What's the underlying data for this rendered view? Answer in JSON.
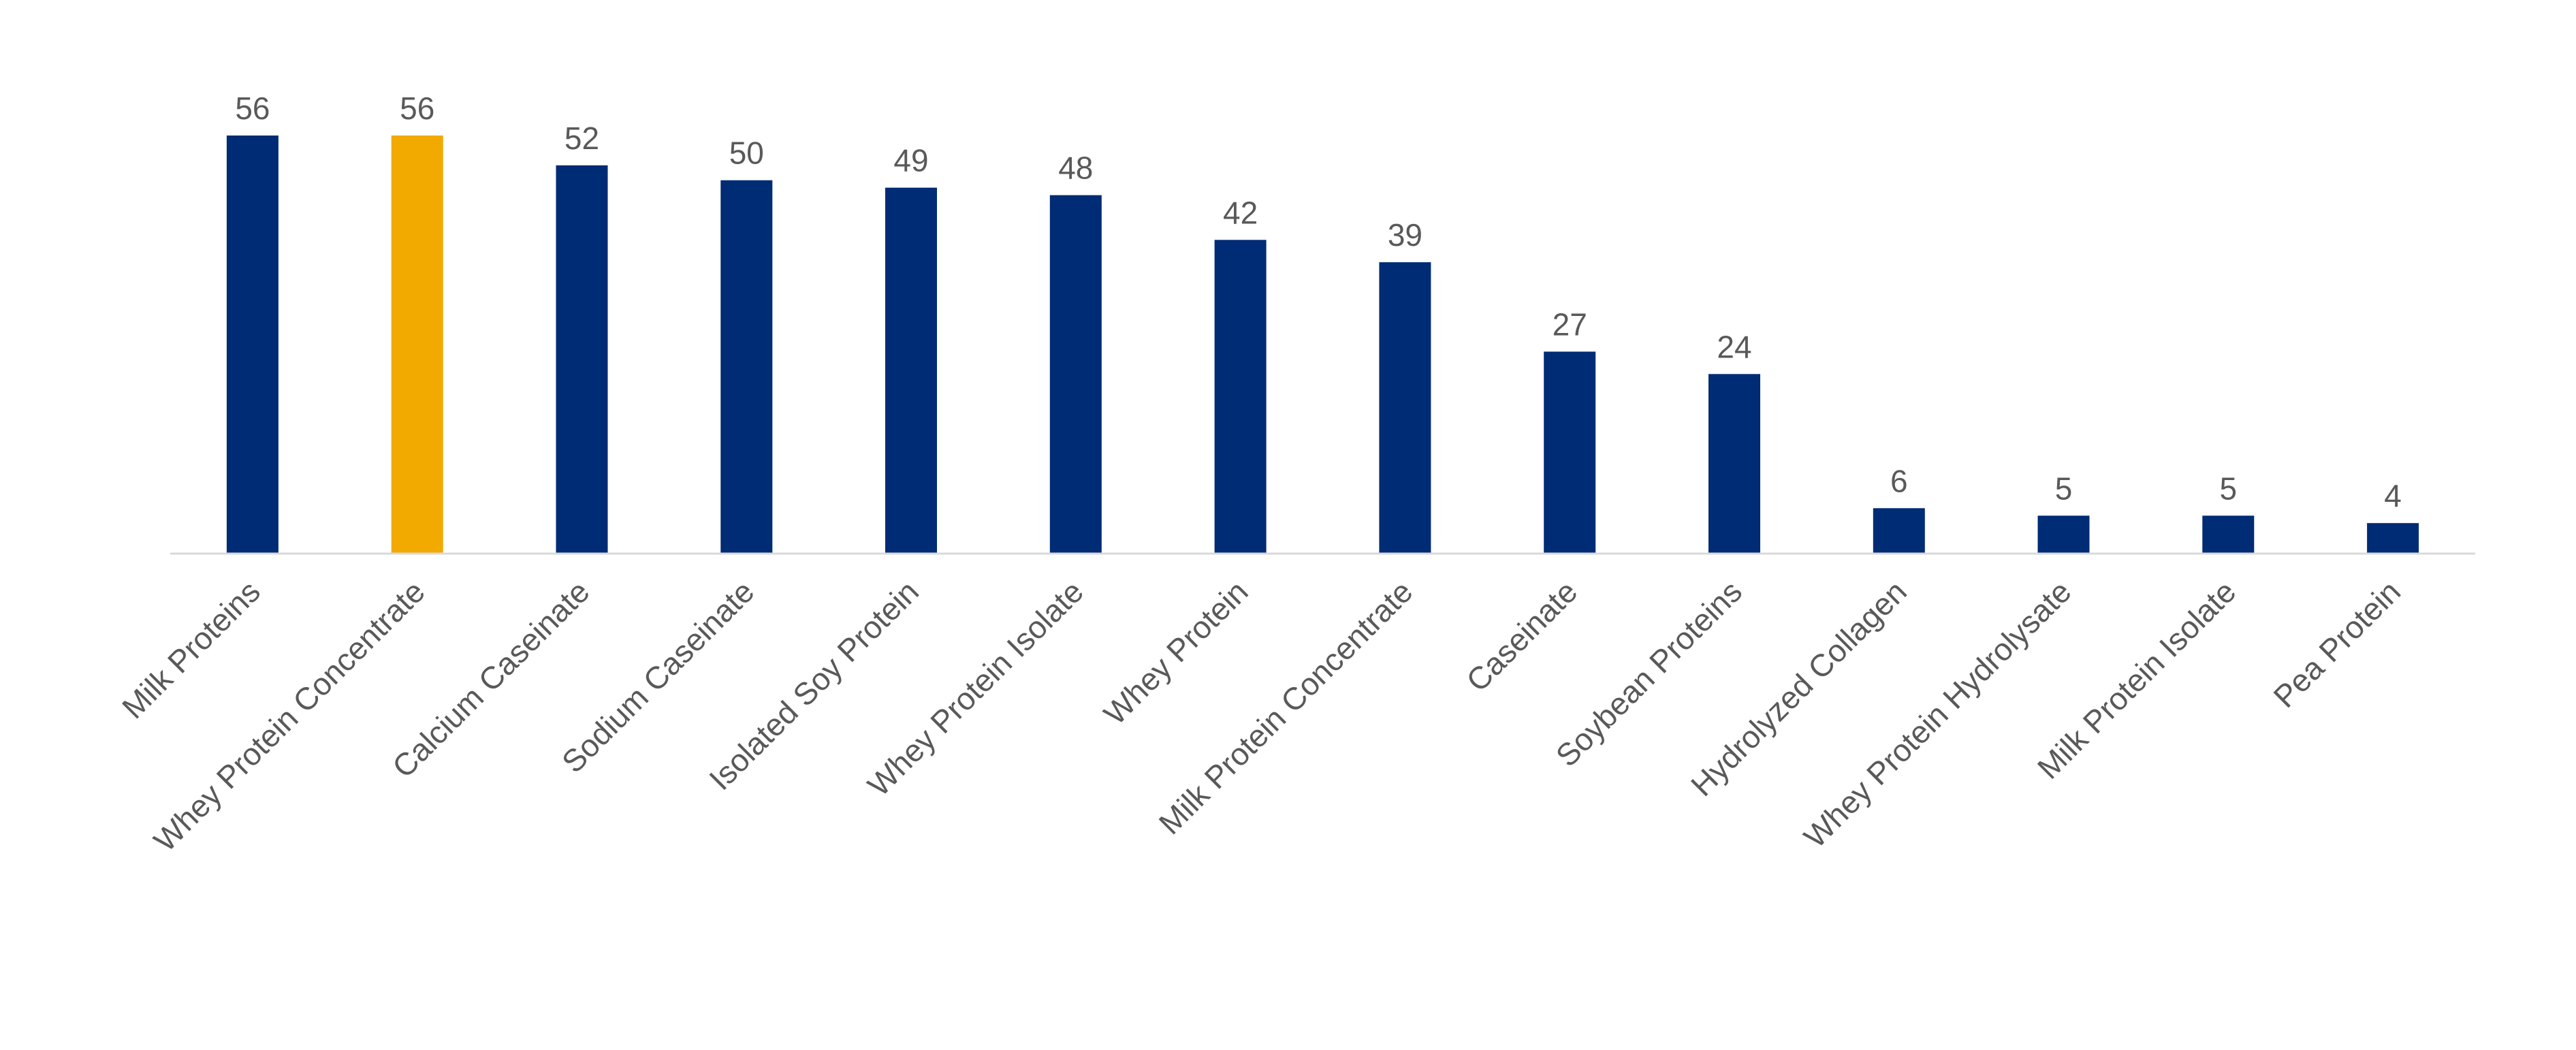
{
  "chart_data": {
    "type": "bar",
    "categories": [
      "Milk Proteins",
      "Whey Protein Concentrate",
      "Calcium Caseinate",
      "Sodium Caseinate",
      "Isolated Soy Protein",
      "Whey Protein Isolate",
      "Whey Protein",
      "Milk Protein Concentrate",
      "Caseinate",
      "Soybean Proteins",
      "Hydrolyzed Collagen",
      "Whey Protein Hydrolysate",
      "Milk Protein Isolate",
      "Pea Protein"
    ],
    "values": [
      56,
      56,
      52,
      50,
      49,
      48,
      42,
      39,
      27,
      24,
      6,
      5,
      5,
      4
    ],
    "ylim": [
      0,
      56
    ],
    "grid": false,
    "legend": "none",
    "data_labels": true,
    "colors": {
      "default": "#002B75",
      "highlight": "#F2A900",
      "axis": "#D9D9D9",
      "text": "#595959"
    },
    "highlight_category": "Whey Protein Concentrate"
  }
}
